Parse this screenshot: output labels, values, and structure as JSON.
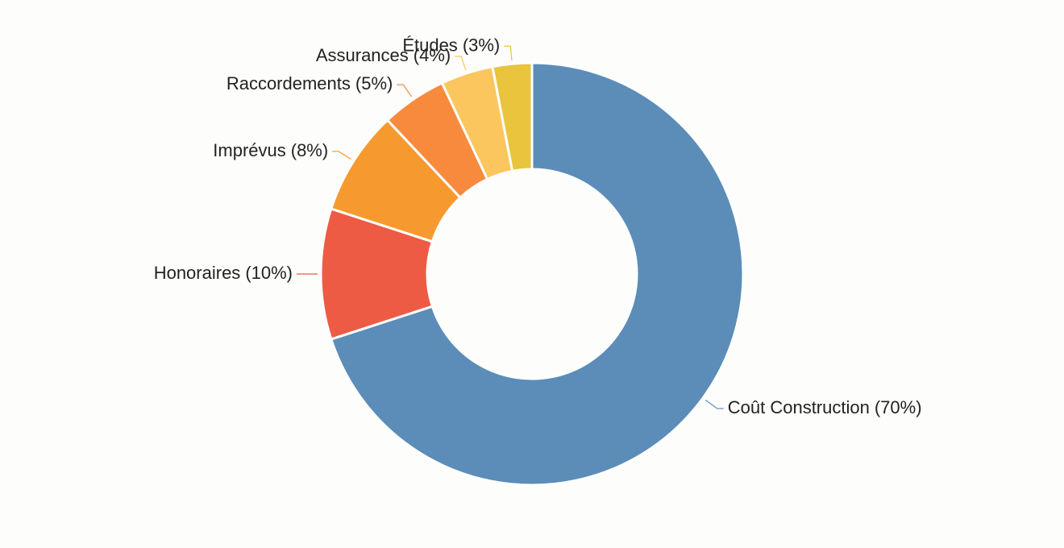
{
  "chart_data": {
    "type": "donut",
    "categories": [
      "Coût Construction",
      "Honoraires",
      "Imprévus",
      "Raccordements",
      "Assurances",
      "Études"
    ],
    "values": [
      70,
      10,
      8,
      5,
      4,
      3
    ],
    "value_labels": [
      "(70%)",
      "(10%)",
      "(8%)",
      "(5%)",
      "(4%)",
      "(3%)"
    ],
    "colors": [
      "#5b8db8",
      "#ee5b45",
      "#f69a30",
      "#f88a3e",
      "#fbc65e",
      "#e9c43c"
    ]
  }
}
